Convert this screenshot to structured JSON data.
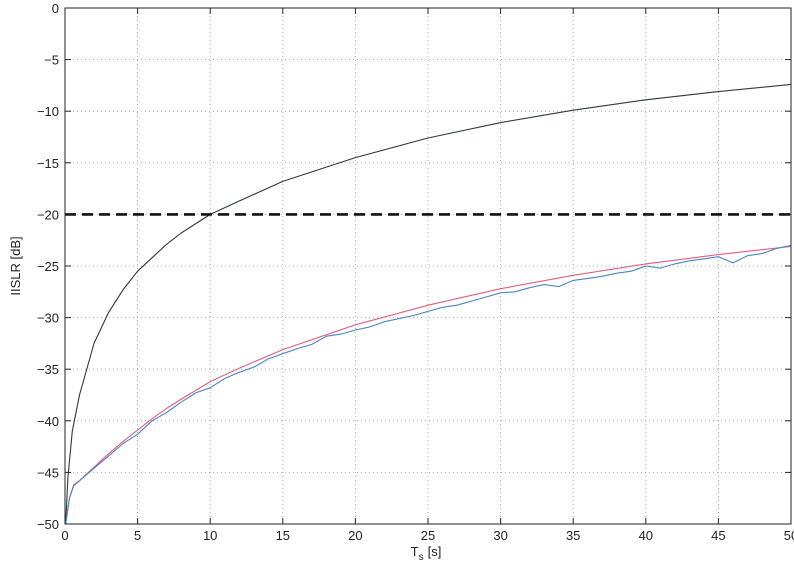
{
  "chart_data": {
    "type": "line",
    "title": "",
    "xlabel_main": "T",
    "xlabel_sub": "s",
    "xlabel_unit": "[s]",
    "ylabel": "IISLR [dB]",
    "xlim": [
      0,
      50
    ],
    "ylim": [
      -50,
      0
    ],
    "xticks": [
      0,
      5,
      10,
      15,
      20,
      25,
      30,
      35,
      40,
      45,
      50
    ],
    "yticks": [
      0,
      -5,
      -10,
      -15,
      -20,
      -25,
      -30,
      -35,
      -40,
      -45,
      -50
    ],
    "xtick_labels": [
      "0",
      "5",
      "10",
      "15",
      "20",
      "25",
      "30",
      "35",
      "40",
      "45",
      "50"
    ],
    "ytick_labels": [
      "0",
      "−5",
      "−10",
      "−15",
      "−20",
      "−25",
      "−30",
      "−35",
      "−40",
      "−45",
      "−50"
    ],
    "grid": true,
    "series": [
      {
        "color": "#2f3a3a",
        "style": "solid",
        "x": [
          0.05,
          0.2,
          0.5,
          1,
          2,
          3,
          4,
          5,
          6,
          7,
          8,
          10,
          12,
          15,
          20,
          25,
          30,
          35,
          40,
          45,
          50
        ],
        "y": [
          -50,
          -45.5,
          -41,
          -37.5,
          -32.5,
          -29.5,
          -27.3,
          -25.5,
          -24.2,
          -22.9,
          -21.8,
          -20,
          -18.7,
          -16.8,
          -14.5,
          -12.6,
          -11.1,
          -9.9,
          -8.9,
          -8.1,
          -7.4
        ]
      },
      {
        "color": "#111111",
        "style": "dashed",
        "x": [
          0,
          50
        ],
        "y": [
          -20,
          -20
        ]
      },
      {
        "color": "#e0607e",
        "style": "solid",
        "x": [
          0.05,
          0.3,
          0.6,
          1,
          2,
          3,
          4,
          5,
          6,
          7,
          8,
          10,
          12,
          15,
          20,
          25,
          30,
          35,
          40,
          45,
          50
        ],
        "y": [
          -50,
          -47.5,
          -46.2,
          -45.8,
          -44.5,
          -43.2,
          -42,
          -40.9,
          -39.8,
          -38.8,
          -37.9,
          -36.2,
          -34.9,
          -33.1,
          -30.7,
          -28.8,
          -27.2,
          -25.9,
          -24.8,
          -23.9,
          -23.1
        ]
      },
      {
        "color": "#4a86c8",
        "style": "solid",
        "x": [
          0.05,
          0.3,
          0.6,
          1,
          2,
          3,
          4,
          5,
          6,
          7,
          8,
          9,
          10,
          11,
          12,
          13,
          14,
          15,
          16,
          17,
          18,
          19,
          20,
          21,
          22,
          23,
          24,
          25,
          26,
          27,
          28,
          29,
          30,
          31,
          32,
          33,
          34,
          35,
          36,
          37,
          38,
          39,
          40,
          41,
          42,
          43,
          44,
          45,
          46,
          47,
          48,
          49,
          50
        ],
        "y": [
          -50,
          -47.5,
          -46.3,
          -45.8,
          -44.6,
          -43.4,
          -42.2,
          -41.3,
          -40,
          -39.2,
          -38.2,
          -37.3,
          -36.8,
          -35.9,
          -35.3,
          -34.8,
          -34,
          -33.5,
          -33,
          -32.6,
          -31.8,
          -31.6,
          -31.2,
          -30.9,
          -30.4,
          -30.1,
          -29.8,
          -29.4,
          -29,
          -28.8,
          -28.4,
          -28,
          -27.6,
          -27.5,
          -27.1,
          -26.8,
          -27,
          -26.4,
          -26.2,
          -26,
          -25.7,
          -25.5,
          -25,
          -25.2,
          -24.8,
          -24.5,
          -24.3,
          -24.1,
          -24.7,
          -24,
          -23.8,
          -23.3,
          -23
        ]
      }
    ]
  }
}
